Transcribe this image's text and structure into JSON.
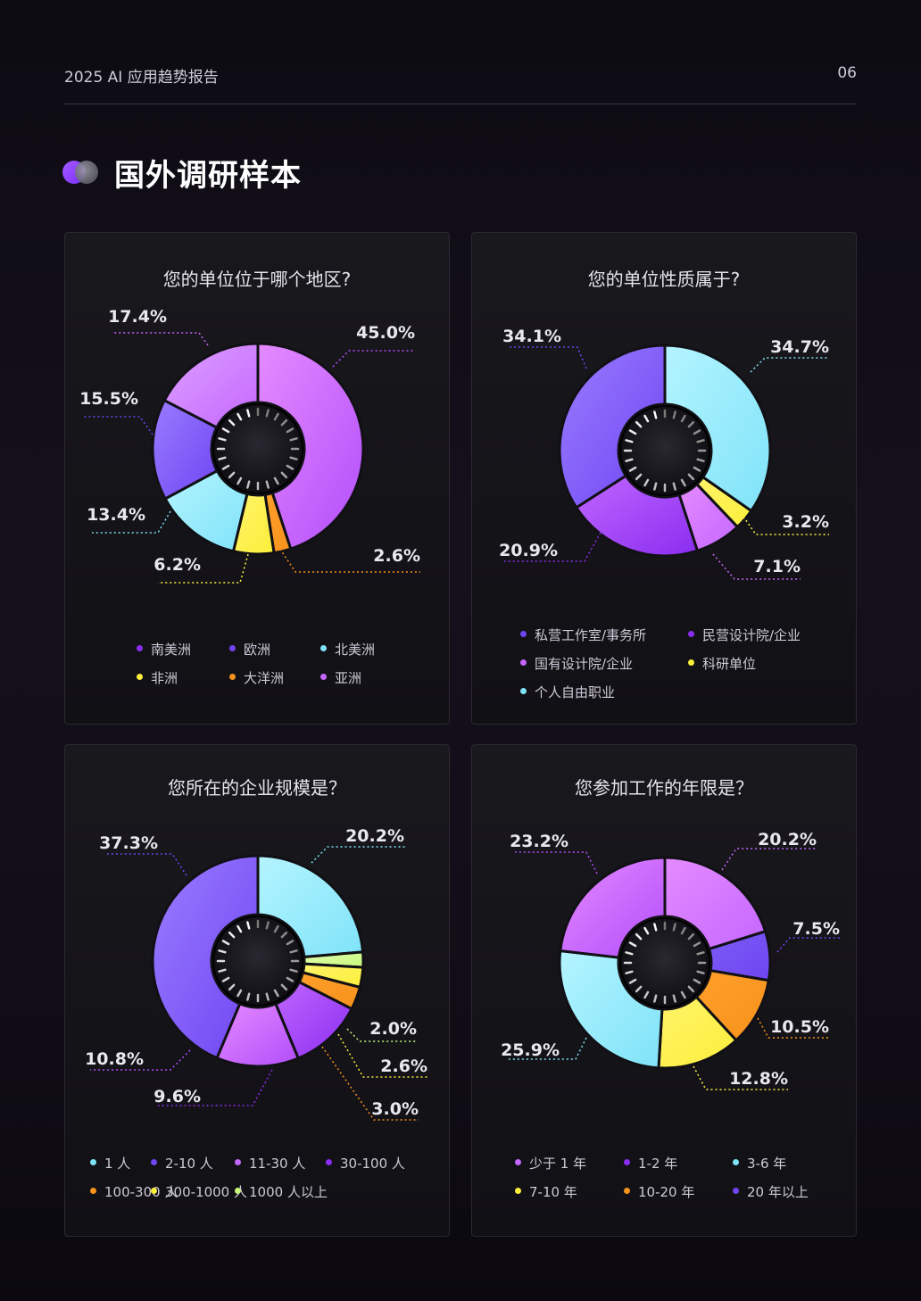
{
  "header": {
    "report_title": "2025 AI 应用趋势报告",
    "page_number": "06"
  },
  "section": {
    "title": "国外调研样本"
  },
  "colors": {
    "purple_light": "#c467ff",
    "purple_violet": "#7b5cf5",
    "cyan": "#7fe3f8",
    "yellow": "#fbef3a",
    "orange": "#f5921c",
    "magenta": "#b24dfa",
    "lime": "#c7f77a",
    "deep_purple": "#8a2df0",
    "royal": "#6f45f2"
  },
  "chart_data": [
    {
      "type": "donut",
      "title": "您的单位位于哪个地区?",
      "categories": [
        "南美洲",
        "欧洲",
        "北美洲",
        "非洲",
        "大洋洲",
        "亚洲"
      ],
      "series": [
        {
          "values": [
            45.0,
            2.6,
            6.2,
            13.4,
            15.5,
            17.4
          ]
        }
      ],
      "slice_order": [
        "亚洲",
        "大洋洲",
        "非洲",
        "北美洲",
        "欧洲",
        "南美洲"
      ],
      "labels": [
        "45.0%",
        "2.6%",
        "6.2%",
        "13.4%",
        "15.5%",
        "17.4%"
      ],
      "legend_placement": "bottom"
    },
    {
      "type": "donut",
      "title": "您的单位性质属于?",
      "categories": [
        "私营工作室/事务所",
        "民营设计院/企业",
        "国有设计院/企业",
        "科研单位",
        "个人自由职业"
      ],
      "series": [
        {
          "values": [
            34.7,
            3.2,
            7.1,
            20.9,
            34.1
          ]
        }
      ],
      "slice_order": [
        "个人自由职业",
        "科研单位",
        "国有设计院/企业",
        "民营设计院/企业",
        "私营工作室/事务所"
      ],
      "labels": [
        "34.7%",
        "3.2%",
        "7.1%",
        "20.9%",
        "34.1%"
      ],
      "legend_placement": "bottom"
    },
    {
      "type": "donut",
      "title": "您所在的企业规模是？",
      "categories": [
        "1 人",
        "2-10 人",
        "11-30 人",
        "30-100 人",
        "100-300 人",
        "300-1000 人",
        "1000 人以上"
      ],
      "series": [
        {
          "values": [
            20.2,
            2.0,
            2.6,
            3.0,
            9.6,
            10.8,
            37.3
          ]
        }
      ],
      "slice_order": [
        "1 人",
        "1000 人以上",
        "300-1000 人",
        "100-300 人",
        "30-100 人",
        "11-30 人",
        "2-10 人"
      ],
      "labels": [
        "20.2%",
        "2.0%",
        "2.6%",
        "3.0%",
        "9.6%",
        "10.8%",
        "37.3%"
      ],
      "legend_placement": "bottom"
    },
    {
      "type": "donut",
      "title": "您参加工作的年限是？",
      "categories": [
        "少于 1 年",
        "1-2 年",
        "3-6 年",
        "7-10 年",
        "10-20 年",
        "20 年以上"
      ],
      "series": [
        {
          "values": [
            20.2,
            7.5,
            10.5,
            12.8,
            25.9,
            23.2
          ]
        }
      ],
      "slice_order": [
        "少于 1 年",
        "20 年以上",
        "10-20 年",
        "7-10 年",
        "3-6 年",
        "1-2 年"
      ],
      "labels": [
        "20.2%",
        "7.5%",
        "10.5%",
        "12.8%",
        "25.9%",
        "23.2%"
      ],
      "legend_placement": "bottom"
    }
  ],
  "legends": [
    [
      {
        "label": "南美洲",
        "color": "#8a2df0"
      },
      {
        "label": "欧洲",
        "color": "#6f45f2"
      },
      {
        "label": "北美洲",
        "color": "#7fe3f8"
      },
      {
        "label": "非洲",
        "color": "#fbef3a"
      },
      {
        "label": "大洋洲",
        "color": "#f5921c"
      },
      {
        "label": "亚洲",
        "color": "#c467ff"
      }
    ],
    [
      {
        "label": "私营工作室/事务所",
        "color": "#6f45f2"
      },
      {
        "label": "民营设计院/企业",
        "color": "#8a2df0"
      },
      {
        "label": "国有设计院/企业",
        "color": "#c467ff"
      },
      {
        "label": "科研单位",
        "color": "#fbef3a"
      },
      {
        "label": "个人自由职业",
        "color": "#7fe3f8"
      }
    ],
    [
      {
        "label": "1 人",
        "color": "#7fe3f8"
      },
      {
        "label": "2-10 人",
        "color": "#6f45f2"
      },
      {
        "label": "11-30 人",
        "color": "#c467ff"
      },
      {
        "label": "30-100 人",
        "color": "#8a2df0"
      },
      {
        "label": "100-300 人",
        "color": "#f5921c"
      },
      {
        "label": "300-1000 人",
        "color": "#fbef3a"
      },
      {
        "label": "1000 人以上",
        "color": "#c7f77a"
      }
    ],
    [
      {
        "label": "少于 1 年",
        "color": "#c467ff"
      },
      {
        "label": "1-2 年",
        "color": "#8a2df0"
      },
      {
        "label": "3-6 年",
        "color": "#7fe3f8"
      },
      {
        "label": "7-10 年",
        "color": "#fbef3a"
      },
      {
        "label": "10-20 年",
        "color": "#f5921c"
      },
      {
        "label": "20 年以上",
        "color": "#6f45f2"
      }
    ]
  ]
}
